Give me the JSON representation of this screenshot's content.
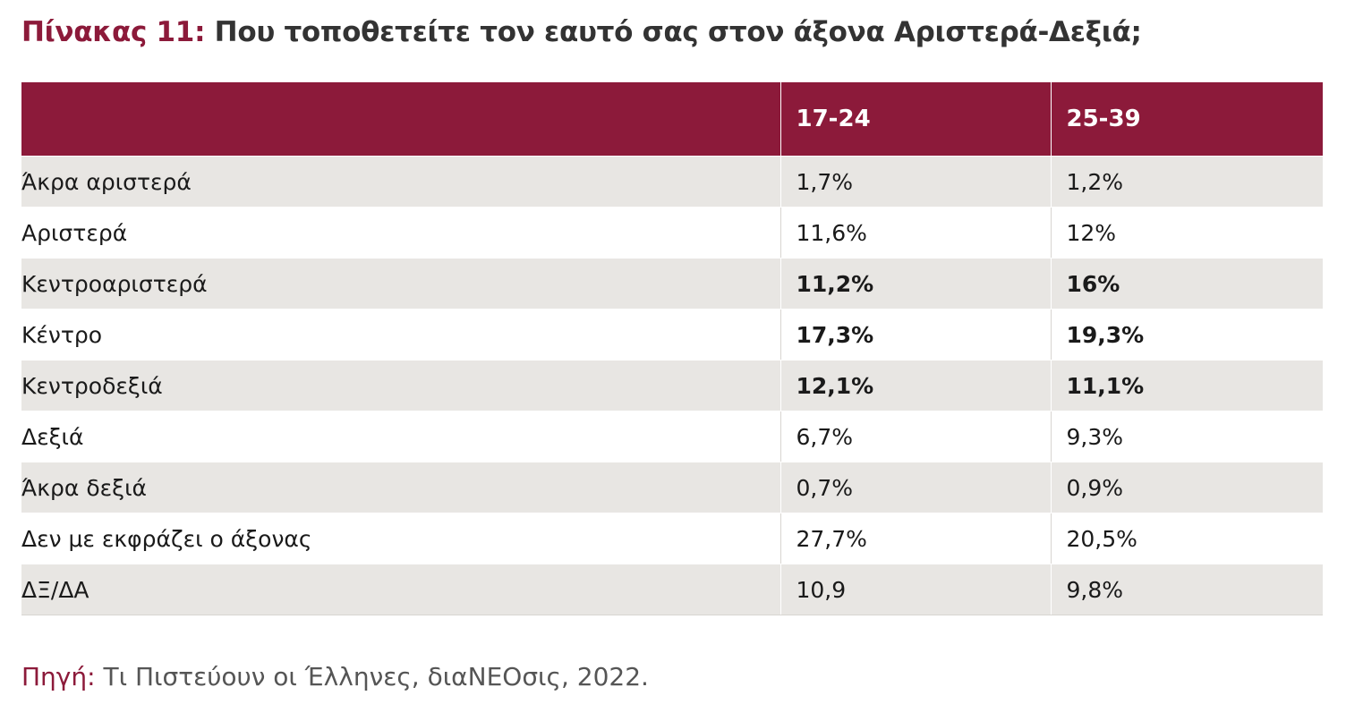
{
  "title": {
    "label": "Πίνακας 11:",
    "text": "Που τοποθετείτε τον εαυτό σας στον άξονα Αριστερά-Δεξιά;"
  },
  "table": {
    "headers": [
      "",
      "17-24",
      "25-39"
    ],
    "rows": [
      {
        "label": "Άκρα αριστερά",
        "v1": "1,7%",
        "v2": "1,2%"
      },
      {
        "label": "Αριστερά",
        "v1": "11,6%",
        "v2": "12%"
      },
      {
        "label": "Κεντροαριστερά",
        "v1": "11,2%",
        "v2": "16%"
      },
      {
        "label": "Κέντρο",
        "v1": "17,3%",
        "v2": "19,3%"
      },
      {
        "label": "Κεντροδεξιά",
        "v1": "12,1%",
        "v2": "11,1%"
      },
      {
        "label": "Δεξιά",
        "v1": "6,7%",
        "v2": "9,3%"
      },
      {
        "label": "Άκρα δεξιά",
        "v1": "0,7%",
        "v2": "0,9%"
      },
      {
        "label": "Δεν με εκφράζει ο άξονας",
        "v1": "27,7%",
        "v2": "20,5%"
      },
      {
        "label": "ΔΞ/ΔΑ",
        "v1": "10,9",
        "v2": "9,8%"
      }
    ]
  },
  "source": {
    "label": "Πηγή:",
    "text": " Τι Πιστεύουν οι Έλληνες, διαΝΕΟσις, 2022."
  },
  "colors": {
    "accent": "#8c1a3a",
    "row_shade": "#e8e6e3"
  }
}
